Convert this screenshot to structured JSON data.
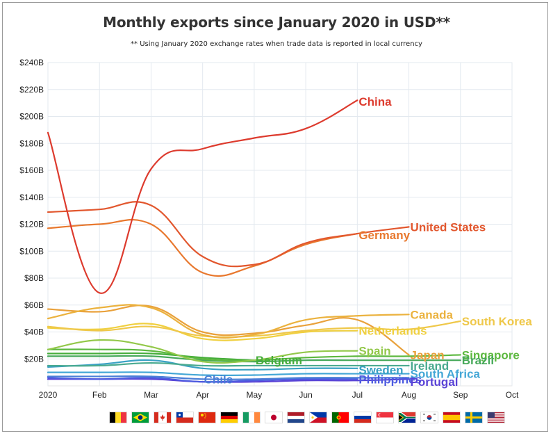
{
  "chart_data": {
    "type": "line",
    "title": "Monthly exports since January 2020 in USD**",
    "subtitle": "** Using January 2020 exchange rates when trade data is reported in local currency",
    "x_tick_labels": [
      "2020",
      "Feb",
      "Mar",
      "Apr",
      "May",
      "Jun",
      "Jul",
      "Aug",
      "Sep",
      "Oct"
    ],
    "xlim": [
      0,
      9
    ],
    "ylim": [
      0,
      240
    ],
    "y_ticks": [
      20,
      40,
      60,
      80,
      100,
      120,
      140,
      160,
      180,
      200,
      220,
      240
    ],
    "y_tick_labels": [
      "$20B",
      "$40B",
      "$60B",
      "$80B",
      "$100B",
      "$120B",
      "$140B",
      "$160B",
      "$180B",
      "$200B",
      "$220B",
      "$240B"
    ],
    "grid": true,
    "series": [
      {
        "name": "China",
        "color": "#dd3b2e",
        "values": [
          188,
          69,
          161,
          176,
          184,
          191,
          212
        ],
        "label_dy": 0
      },
      {
        "name": "United States",
        "color": "#e2572e",
        "values": [
          129,
          131,
          134,
          96,
          90,
          106,
          113,
          118
        ],
        "label_dy": 0
      },
      {
        "name": "Germany",
        "color": "#e8782e",
        "values": [
          117,
          120,
          120,
          84,
          89,
          105,
          113
        ],
        "label_dy": 0
      },
      {
        "name": "Canada",
        "color": "#ebb23e",
        "values": [
          50,
          58,
          58,
          38,
          38,
          49,
          52,
          53
        ],
        "label_dy": 0
      },
      {
        "name": "South Korea",
        "color": "#efc84a",
        "values": [
          44,
          41,
          44,
          37,
          37,
          41,
          43,
          42,
          48
        ],
        "label_dy": 0
      },
      {
        "name": "Netherlands",
        "color": "#f0d040",
        "values": [
          43,
          42,
          46,
          35,
          35,
          40,
          41
        ],
        "label_dy": 0
      },
      {
        "name": "Japan",
        "color": "#e9a13b",
        "values": [
          57,
          55,
          59,
          40,
          39,
          45,
          49,
          23
        ],
        "label_dy": 0
      },
      {
        "name": "Spain",
        "color": "#93c84a",
        "values": [
          27,
          34,
          29,
          18,
          19,
          25,
          26
        ],
        "label_dy": 0
      },
      {
        "name": "Singapore",
        "color": "#5cb83f",
        "values": [
          27,
          27,
          26,
          20,
          19,
          21,
          22,
          22,
          23
        ],
        "label_dy": 0
      },
      {
        "name": "Belgium",
        "color": "#45ad3a",
        "values": [
          24,
          24,
          24,
          21,
          19
        ],
        "label_dy": 0
      },
      {
        "name": "Brazil",
        "color": "#47a95a",
        "values": [
          22,
          22,
          22,
          19,
          18,
          19,
          19,
          19,
          19
        ],
        "label_dy": 0
      },
      {
        "name": "Ireland",
        "color": "#4aaa90",
        "values": [
          15,
          15,
          17,
          15,
          15,
          15,
          15,
          15
        ],
        "label_dy": 0
      },
      {
        "name": "Sweden",
        "color": "#3aa1c4",
        "values": [
          14,
          16,
          19,
          13,
          12,
          13,
          13
        ],
        "label_dy": 0
      },
      {
        "name": "South Africa",
        "color": "#44a7d6",
        "values": [
          10,
          10,
          10,
          8,
          8,
          9,
          9,
          9
        ],
        "label_dy": 0
      },
      {
        "name": "Chile",
        "color": "#4a7fd6",
        "values": [
          7,
          7,
          7,
          5,
          5,
          6,
          6,
          6
        ],
        "label_dy": 0
      },
      {
        "name": "Philippines",
        "color": "#4d5be0",
        "values": [
          6,
          5,
          6,
          3,
          4,
          5,
          5
        ],
        "label_dy": 0
      },
      {
        "name": "Portugal",
        "color": "#5a43d6",
        "values": [
          5,
          5,
          5,
          3,
          3,
          4,
          4,
          5
        ],
        "label_dy": 0
      }
    ],
    "annotations": [
      {
        "text": "China",
        "x": 6,
        "y": 211,
        "color": "#dd3b2e"
      },
      {
        "text": "United States",
        "x": 7,
        "y": 118,
        "color": "#e2572e"
      },
      {
        "text": "Germany",
        "x": 6,
        "y": 112,
        "color": "#e8782e"
      },
      {
        "text": "Canada",
        "x": 7,
        "y": 53,
        "color": "#ebb23e"
      },
      {
        "text": "South Korea",
        "x": 8,
        "y": 48,
        "color": "#efc84a"
      },
      {
        "text": "Netherlands",
        "x": 6,
        "y": 41,
        "color": "#f0d040"
      },
      {
        "text": "Japan",
        "x": 7,
        "y": 23,
        "color": "#e9a13b"
      },
      {
        "text": "Spain",
        "x": 6,
        "y": 26,
        "color": "#93c84a"
      },
      {
        "text": "Singapore",
        "x": 8,
        "y": 23,
        "color": "#5cb83f"
      },
      {
        "text": "Belgium",
        "x": 4,
        "y": 19,
        "color": "#45ad3a"
      },
      {
        "text": "Brazil",
        "x": 8,
        "y": 19,
        "color": "#47a95a"
      },
      {
        "text": "Ireland",
        "x": 7,
        "y": 15,
        "color": "#4aaa90"
      },
      {
        "text": "Sweden",
        "x": 6,
        "y": 12,
        "color": "#3aa1c4"
      },
      {
        "text": "South Africa",
        "x": 7,
        "y": 9,
        "color": "#44a7d6"
      },
      {
        "text": "Chile",
        "x": 3,
        "y": 5,
        "color": "#4a7fd6"
      },
      {
        "text": "Philippines",
        "x": 6,
        "y": 5,
        "color": "#4d5be0"
      },
      {
        "text": "Portugal",
        "x": 7,
        "y": 3,
        "color": "#5a43d6"
      }
    ]
  },
  "flags": [
    {
      "name": "belgium-flag-icon"
    },
    {
      "name": "brazil-flag-icon"
    },
    {
      "name": "canada-flag-icon"
    },
    {
      "name": "chile-flag-icon"
    },
    {
      "name": "china-flag-icon"
    },
    {
      "name": "germany-flag-icon"
    },
    {
      "name": "ireland-flag-icon"
    },
    {
      "name": "japan-flag-icon"
    },
    {
      "name": "netherlands-flag-icon"
    },
    {
      "name": "philippines-flag-icon"
    },
    {
      "name": "portugal-flag-icon"
    },
    {
      "name": "russia-flag-icon"
    },
    {
      "name": "singapore-flag-icon"
    },
    {
      "name": "south-africa-flag-icon"
    },
    {
      "name": "south-korea-flag-icon"
    },
    {
      "name": "spain-flag-icon"
    },
    {
      "name": "sweden-flag-icon"
    },
    {
      "name": "united-states-flag-icon"
    }
  ]
}
